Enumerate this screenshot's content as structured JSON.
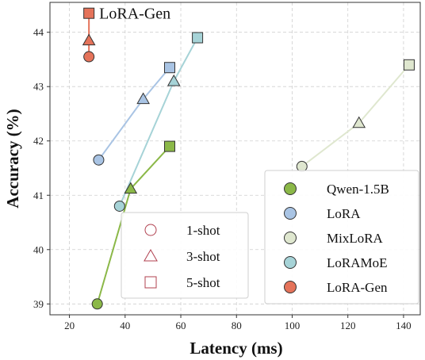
{
  "chart_data": {
    "type": "scatter",
    "title": "",
    "xlabel": "Latency (ms)",
    "ylabel": "Accuracy (%)",
    "xlim": [
      13,
      146
    ],
    "ylim": [
      38.8,
      44.55
    ],
    "xticks": [
      20,
      40,
      60,
      80,
      100,
      120,
      140
    ],
    "yticks": [
      39,
      40,
      41,
      42,
      43,
      44
    ],
    "grid": true,
    "series": [
      {
        "name": "Qwen-1.5B",
        "color": "#8bb848",
        "points": [
          {
            "shot": "1-shot",
            "x": 30,
            "y": 39.0
          },
          {
            "shot": "3-shot",
            "x": 42,
            "y": 41.12
          },
          {
            "shot": "5-shot",
            "x": 56,
            "y": 41.9
          }
        ]
      },
      {
        "name": "LoRA",
        "color": "#a9c4e4",
        "points": [
          {
            "shot": "1-shot",
            "x": 30.5,
            "y": 41.65
          },
          {
            "shot": "3-shot",
            "x": 46.5,
            "y": 42.77
          },
          {
            "shot": "5-shot",
            "x": 56,
            "y": 43.35
          }
        ]
      },
      {
        "name": "MixLoRA",
        "color": "#dfe7cf",
        "points": [
          {
            "shot": "1-shot",
            "x": 103.5,
            "y": 41.53
          },
          {
            "shot": "3-shot",
            "x": 124,
            "y": 42.33
          },
          {
            "shot": "5-shot",
            "x": 142,
            "y": 43.4
          }
        ]
      },
      {
        "name": "LoRAMoE",
        "color": "#a6d3d7",
        "points": [
          {
            "shot": "1-shot",
            "x": 38,
            "y": 40.8
          },
          {
            "shot": "3-shot",
            "x": 57.5,
            "y": 43.1
          },
          {
            "shot": "5-shot",
            "x": 66,
            "y": 43.9
          }
        ]
      },
      {
        "name": "LoRA-Gen",
        "color": "#e5735a",
        "points": [
          {
            "shot": "1-shot",
            "x": 27,
            "y": 43.55
          },
          {
            "shot": "3-shot",
            "x": 27,
            "y": 43.85
          },
          {
            "shot": "5-shot",
            "x": 27,
            "y": 44.35
          }
        ]
      }
    ],
    "annotations": [
      {
        "text": "LoRA-Gen",
        "x": 27,
        "y": 44.35
      }
    ],
    "legend_models": {
      "placement": "bottom-right",
      "entries": [
        "Qwen-1.5B",
        "LoRA",
        "MixLoRA",
        "LoRAMoE",
        "LoRA-Gen"
      ]
    },
    "legend_shots": {
      "placement": "bottom-center",
      "marker_color": "#b0404f",
      "entries": [
        {
          "label": "1-shot",
          "marker": "circle"
        },
        {
          "label": "3-shot",
          "marker": "triangle"
        },
        {
          "label": "5-shot",
          "marker": "square"
        }
      ]
    }
  }
}
